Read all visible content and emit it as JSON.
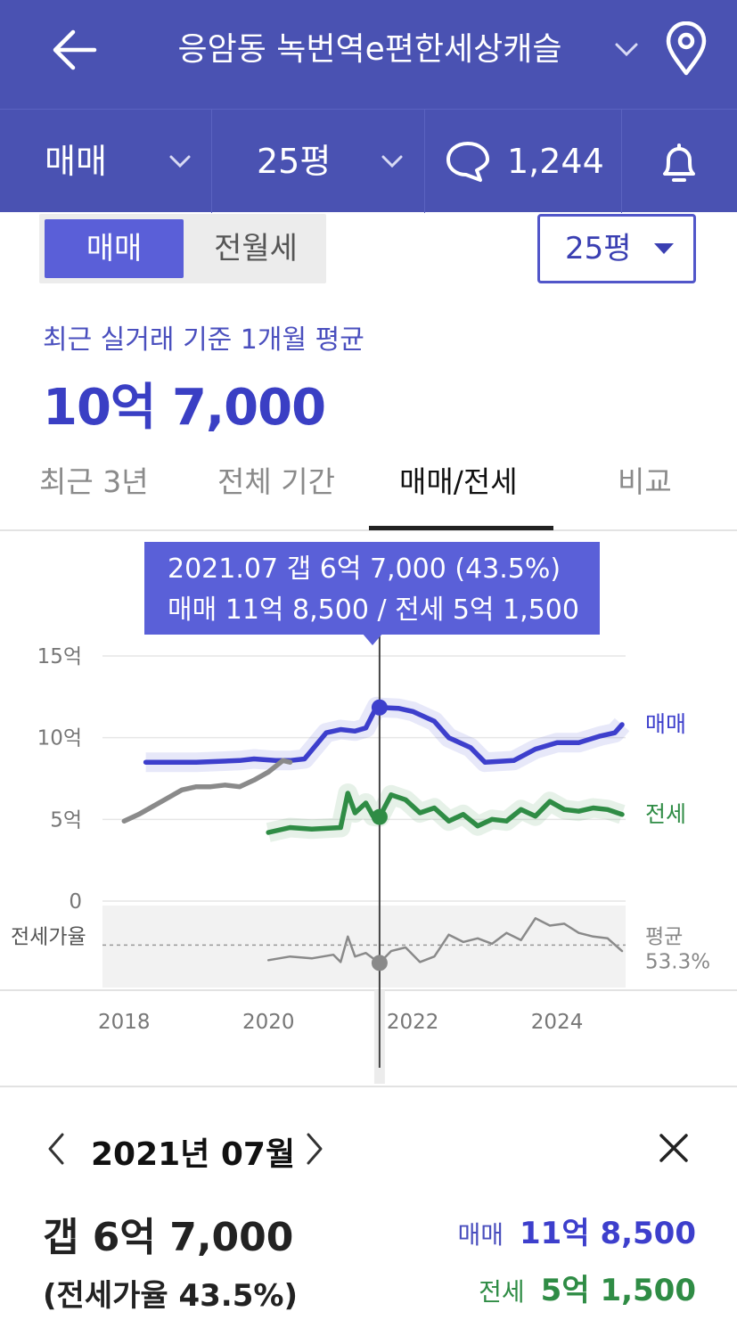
{
  "header": {
    "title": "응암동 녹번역e편한세상캐슬",
    "icons": {
      "back": "arrow-left-icon",
      "title_chevron": "chevron-down-icon",
      "location": "map-pin-icon"
    }
  },
  "filters": {
    "trade_type": "매매",
    "size": "25평",
    "comment_count": "1,244",
    "icons": {
      "comment": "speech-bubble-icon",
      "notify": "bell-icon"
    }
  },
  "segment": {
    "active": "매매",
    "inactive": "전월세"
  },
  "size_select": "25평",
  "summary": {
    "subtitle": "최근 실거래 기준 1개월 평균",
    "price": "10억 7,000"
  },
  "tabs": [
    {
      "label": "최근 3년"
    },
    {
      "label": "전체 기간"
    },
    {
      "label": "매매/전세",
      "active": true
    },
    {
      "label": "비교"
    }
  ],
  "tooltip": {
    "line1": "2021.07  갭 6억 7,000 (43.5%)",
    "line2": "매매 11억 8,500 / 전세 5억 1,500"
  },
  "chart_data": {
    "type": "line",
    "ylim": [
      0,
      15
    ],
    "yticks": [
      "15억",
      "10억",
      "5억",
      "0"
    ],
    "xticks": [
      "2018",
      "2020",
      "2022",
      "2024"
    ],
    "ratio_label": "전세가율",
    "avg_label": "평균",
    "avg_value": "53.3%",
    "selected_x": 2021.54,
    "series": [
      {
        "name": "매매",
        "color": "#3d3fcc",
        "x": [
          2018.3,
          2019.0,
          2019.6,
          2019.8,
          2020.1,
          2020.3,
          2020.5,
          2020.8,
          2021.0,
          2021.2,
          2021.35,
          2021.5,
          2021.54,
          2021.8,
          2022.0,
          2022.3,
          2022.5,
          2022.8,
          2023.0,
          2023.4,
          2023.7,
          2024.0,
          2024.3,
          2024.6,
          2024.8,
          2024.9
        ],
        "y": [
          8.5,
          8.5,
          8.6,
          8.7,
          8.6,
          8.6,
          8.7,
          10.3,
          10.5,
          10.4,
          10.6,
          11.9,
          11.85,
          11.8,
          11.6,
          11.0,
          10.0,
          9.4,
          8.5,
          8.6,
          9.3,
          9.7,
          9.7,
          10.1,
          10.3,
          10.8
        ]
      },
      {
        "name": "매매-before",
        "color": "#8a8a8a",
        "x": [
          2018.0,
          2018.2,
          2018.4,
          2018.6,
          2018.8,
          2019.0,
          2019.2,
          2019.4,
          2019.6,
          2019.8,
          2020.0,
          2020.2,
          2020.3
        ],
        "y": [
          4.9,
          5.3,
          5.8,
          6.3,
          6.8,
          7.0,
          7.0,
          7.1,
          7.0,
          7.4,
          7.9,
          8.6,
          8.5
        ]
      },
      {
        "name": "전세",
        "color": "#2f8c45",
        "x": [
          2020.0,
          2020.3,
          2020.6,
          2021.0,
          2021.1,
          2021.2,
          2021.35,
          2021.45,
          2021.54,
          2021.7,
          2021.9,
          2022.1,
          2022.3,
          2022.5,
          2022.7,
          2022.9,
          2023.1,
          2023.3,
          2023.5,
          2023.7,
          2023.9,
          2024.1,
          2024.3,
          2024.5,
          2024.7,
          2024.9
        ],
        "y": [
          4.2,
          4.5,
          4.4,
          4.5,
          6.6,
          5.4,
          6.0,
          5.2,
          5.15,
          6.5,
          6.2,
          5.4,
          5.7,
          4.9,
          5.3,
          4.6,
          5.0,
          4.9,
          5.6,
          5.2,
          6.1,
          5.6,
          5.5,
          5.7,
          5.6,
          5.3
        ]
      },
      {
        "name": "전세가율",
        "color": "#8a8a8a",
        "x": [
          2020.0,
          2020.3,
          2020.6,
          2020.9,
          2021.0,
          2021.1,
          2021.2,
          2021.35,
          2021.45,
          2021.54,
          2021.7,
          2021.9,
          2022.1,
          2022.3,
          2022.5,
          2022.7,
          2022.9,
          2023.1,
          2023.3,
          2023.5,
          2023.7,
          2023.9,
          2024.1,
          2024.3,
          2024.5,
          2024.7,
          2024.9
        ],
        "y": [
          45,
          47,
          46,
          48,
          44,
          58,
          47,
          49,
          46,
          43.5,
          50,
          52,
          44,
          47,
          59,
          55,
          57,
          54,
          60,
          56,
          68,
          64,
          65,
          60,
          58,
          57,
          50
        ]
      }
    ]
  },
  "detail": {
    "month": "2021년 07월",
    "gap": "갭 6억 7,000",
    "ratio": "(전세가율 43.5%)",
    "sale_label": "매매",
    "sale_value": "11억 8,500",
    "jeonse_label": "전세",
    "jeonse_value": "5억 1,500",
    "colors": {
      "sale": "#3d3fcc",
      "jeonse": "#2f8c45"
    },
    "icons": {
      "prev": "chevron-left-icon",
      "next": "chevron-right-icon",
      "close": "close-icon"
    }
  }
}
